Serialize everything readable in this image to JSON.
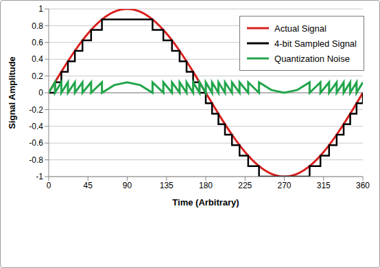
{
  "chart_data": {
    "type": "line",
    "x_label": "Time (Arbitrary)",
    "y_label": "Signal Amplitude",
    "xlim": [
      0,
      360
    ],
    "xticks": [
      0,
      45,
      90,
      135,
      180,
      225,
      270,
      315,
      360
    ],
    "ylim": [
      -1,
      1
    ],
    "yticks": [
      -1,
      -0.8,
      -0.6,
      -0.4,
      -0.2,
      0,
      0.2,
      0.4,
      0.6,
      0.8,
      1
    ],
    "grid": true,
    "legend": "upper right",
    "series": [
      {
        "name": "Actual Signal",
        "color": "#d9201e",
        "type": "line",
        "line_style": "smooth",
        "x": [
          0,
          15,
          30,
          45,
          60,
          75,
          90,
          105,
          120,
          135,
          150,
          165,
          180,
          195,
          210,
          225,
          240,
          255,
          270,
          285,
          300,
          315,
          330,
          345,
          360
        ],
        "values": [
          0,
          0.259,
          0.5,
          0.707,
          0.866,
          0.966,
          1,
          0.966,
          0.866,
          0.707,
          0.5,
          0.259,
          0,
          -0.259,
          -0.5,
          -0.707,
          -0.866,
          -0.966,
          -1,
          -0.966,
          -0.866,
          -0.707,
          -0.5,
          -0.259,
          0
        ]
      },
      {
        "name": "4-bit Sampled Signal",
        "color": "#000000",
        "type": "step",
        "line_style": "solid",
        "x": [
          0,
          7.2,
          14.5,
          22,
          30,
          38.7,
          48.6,
          61,
          119,
          131.4,
          141.3,
          150,
          158,
          165.5,
          172.8,
          180,
          187.2,
          194.5,
          202,
          210,
          218.7,
          228.6,
          241,
          299,
          311.4,
          321.3,
          330,
          338,
          345.5,
          352.8,
          360
        ],
        "values": [
          0,
          0.125,
          0.25,
          0.375,
          0.5,
          0.625,
          0.75,
          0.875,
          0.75,
          0.625,
          0.5,
          0.375,
          0.25,
          0.125,
          0,
          -0.125,
          -0.25,
          -0.375,
          -0.5,
          -0.625,
          -0.75,
          -0.875,
          -1,
          -0.875,
          -0.75,
          -0.625,
          -0.5,
          -0.375,
          -0.25,
          -0.125,
          0
        ]
      },
      {
        "name": "Quantization Noise",
        "color": "#22a54b",
        "type": "line",
        "line_style": "solid",
        "x": [
          0,
          7.2,
          7.2,
          14.5,
          14.5,
          22,
          22,
          30,
          30,
          38.7,
          38.7,
          48.6,
          48.6,
          61,
          61,
          75,
          90,
          105,
          119,
          119,
          131.4,
          131.4,
          141.3,
          141.3,
          150,
          150,
          158,
          158,
          165.5,
          165.5,
          172.8,
          172.8,
          180,
          180,
          187.2,
          187.2,
          194.5,
          194.5,
          202,
          202,
          210,
          210,
          218.7,
          218.7,
          228.6,
          228.6,
          241,
          241,
          255,
          270,
          285,
          299,
          299,
          311.4,
          311.4,
          321.3,
          321.3,
          330,
          330,
          338,
          338,
          345.5,
          345.5,
          352.8,
          352.8,
          360
        ],
        "values": [
          0,
          0.125,
          0,
          0.125,
          0,
          0.125,
          0,
          0.125,
          0,
          0.125,
          0,
          0.125,
          0,
          0.125,
          0,
          0.091,
          0.125,
          0.091,
          0,
          0.125,
          0,
          0.125,
          0,
          0.125,
          0,
          0.125,
          0,
          0.125,
          0,
          0.125,
          0,
          0.125,
          0,
          0.125,
          0,
          0.125,
          0,
          0.125,
          0,
          0.125,
          0,
          0.125,
          0,
          0.125,
          0,
          0.125,
          0,
          0.125,
          0.034,
          0,
          0.034,
          0.125,
          0,
          0.125,
          0,
          0.125,
          0,
          0.125,
          0,
          0.125,
          0,
          0.125,
          0,
          0.125,
          0,
          0.125
        ]
      }
    ]
  }
}
